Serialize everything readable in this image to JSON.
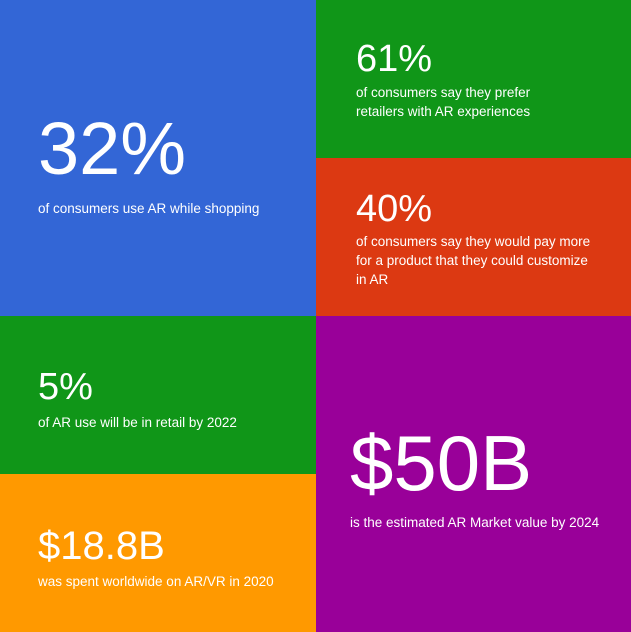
{
  "tiles": [
    {
      "stat": "32%",
      "text": "of consumers use AR while shopping"
    },
    {
      "stat": "61%",
      "text": "of consumers say they prefer retailers with AR experiences"
    },
    {
      "stat": "40%",
      "text": "of consumers say they would pay more for a product that they could customize in AR"
    },
    {
      "stat": "5%",
      "text": "of AR use will be in retail by 2022"
    },
    {
      "stat": "$18.8B",
      "text": "was spent worldwide on AR/VR in 2020"
    },
    {
      "stat": "$50B",
      "text": "is the estimated AR Market value by 2024"
    }
  ]
}
